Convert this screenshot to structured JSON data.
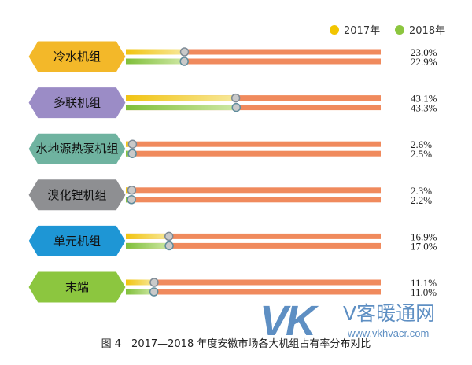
{
  "chart_data": {
    "type": "bar",
    "title": "",
    "xlabel": "",
    "ylabel": "",
    "xlim": [
      0,
      100
    ],
    "legend_position": "top-right",
    "grid": false,
    "categories": [
      "冷水机组",
      "多联机组",
      "水地源热泵机组",
      "溴化锂机组",
      "单元机组",
      "末端"
    ],
    "series": [
      {
        "name": "2017年",
        "values": [
          23.0,
          43.1,
          2.6,
          2.3,
          16.9,
          11.1
        ],
        "labels": [
          "23.0%",
          "43.1%",
          "2.6%",
          "2.3%",
          "16.9%",
          "11.1%"
        ],
        "color": "#f2c500"
      },
      {
        "name": "2018年",
        "values": [
          22.9,
          43.3,
          2.5,
          2.2,
          17.0,
          11.0
        ],
        "labels": [
          "22.9%",
          "43.3%",
          "2.5%",
          "2.2%",
          "17.0%",
          "11.0%"
        ],
        "color": "#8cc63f"
      }
    ],
    "track_color": "#f08a5d",
    "category_colors": [
      "#f3b829",
      "#9b8cc6",
      "#6fb3a0",
      "#8e8f92",
      "#1e96d5",
      "#8cc63f"
    ]
  },
  "caption": "图 4　2017—2018 年度安徽市场各大机组占有率分布对比",
  "watermark": {
    "mark": "VK",
    "name": "V客暖通网",
    "url": "www.vkhvacr.com"
  }
}
